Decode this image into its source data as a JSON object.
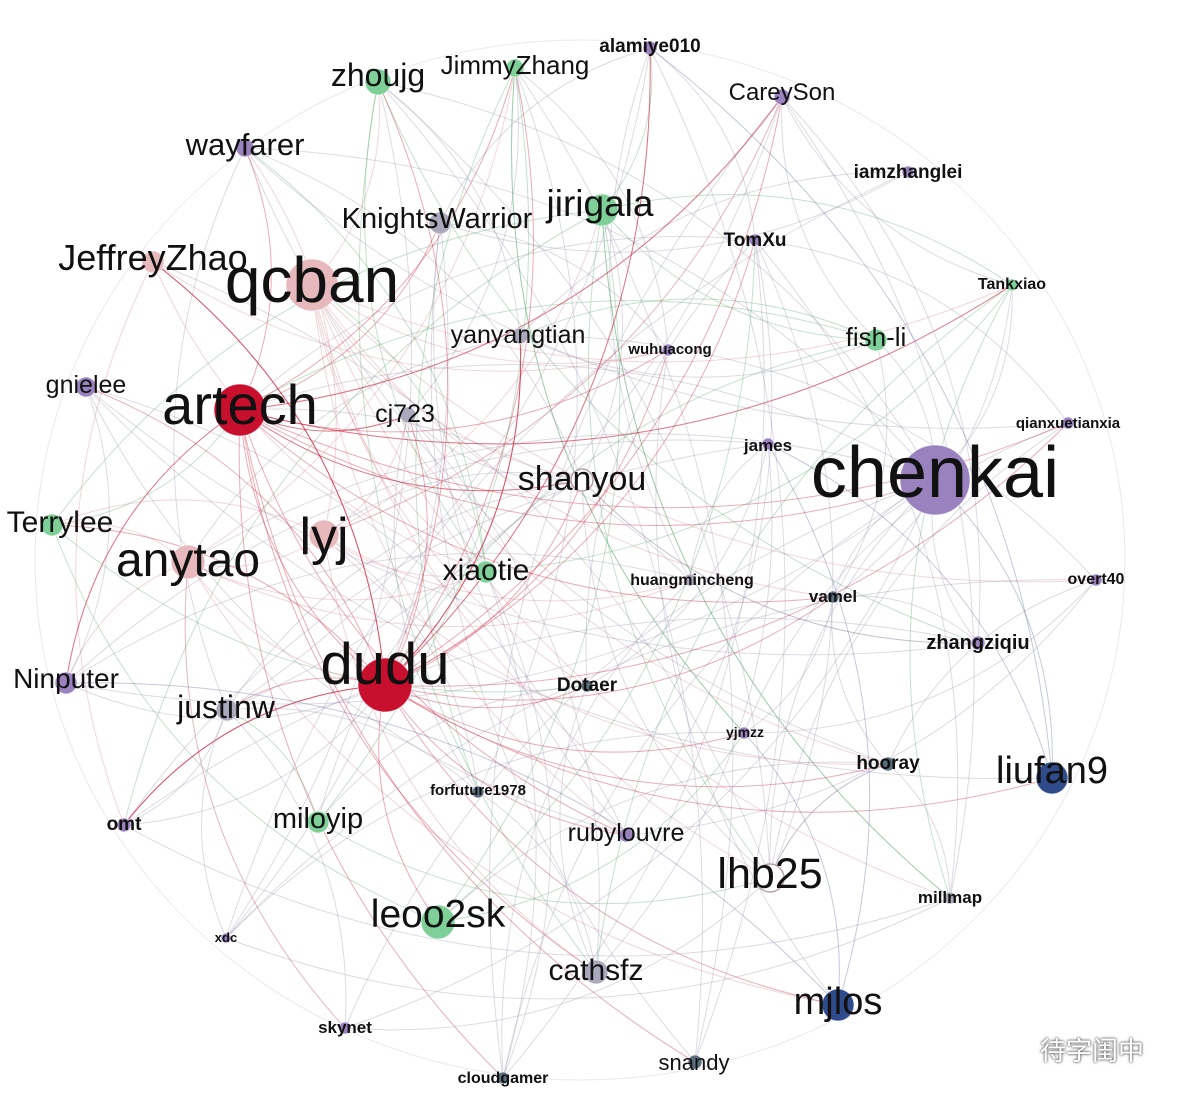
{
  "graph": {
    "colors": {
      "red": "#c8102e",
      "pink": "#e7b9bd",
      "lavender": "#9a82bf",
      "green": "#7fcf98",
      "gray": "#aaa8bb",
      "navy": "#2f4b8c",
      "slate": "#5a6e7e",
      "white": "#ffffff"
    },
    "nodes": [
      {
        "id": "zhoujg",
        "label": "zhoujg",
        "color": "green"
      },
      {
        "id": "JimmyZhang",
        "label": "JimmyZhang",
        "color": "green"
      },
      {
        "id": "alamiye010",
        "label": "alamiye010",
        "color": "lavender"
      },
      {
        "id": "CareySon",
        "label": "CareySon",
        "color": "lavender"
      },
      {
        "id": "wayfarer",
        "label": "wayfarer",
        "color": "lavender"
      },
      {
        "id": "iamzhanglei",
        "label": "iamzhanglei",
        "color": "lavender"
      },
      {
        "id": "jirigala",
        "label": "jirigala",
        "color": "green"
      },
      {
        "id": "KnightsWarrior",
        "label": "KnightsWarrior",
        "color": "gray"
      },
      {
        "id": "TomXu",
        "label": "TomXu",
        "color": "lavender"
      },
      {
        "id": "JeffreyZhao",
        "label": "JeffreyZhao",
        "color": "pink"
      },
      {
        "id": "qcban",
        "label": "qcban",
        "color": "pink"
      },
      {
        "id": "Tankxiao",
        "label": "Tankxiao",
        "color": "green"
      },
      {
        "id": "yanyangtian",
        "label": "yanyangtian",
        "color": "gray"
      },
      {
        "id": "wuhuacong",
        "label": "wuhuacong",
        "color": "lavender"
      },
      {
        "id": "fish-li",
        "label": "fish-li",
        "color": "green"
      },
      {
        "id": "gnielee",
        "label": "gnielee",
        "color": "lavender"
      },
      {
        "id": "artech",
        "label": "artech",
        "color": "red"
      },
      {
        "id": "cj723",
        "label": "cj723",
        "color": "gray"
      },
      {
        "id": "qianxuetianxia",
        "label": "qianxuetianxia",
        "color": "lavender"
      },
      {
        "id": "james",
        "label": "james",
        "color": "lavender"
      },
      {
        "id": "chenkai",
        "label": "chenkai",
        "color": "lavender"
      },
      {
        "id": "shanyou",
        "label": "shanyou",
        "color": "white"
      },
      {
        "id": "Terrylee",
        "label": "Terrylee",
        "color": "green"
      },
      {
        "id": "lyj",
        "label": "lyj",
        "color": "pink"
      },
      {
        "id": "anytao",
        "label": "anytao",
        "color": "pink"
      },
      {
        "id": "xiaotie",
        "label": "xiaotie",
        "color": "green"
      },
      {
        "id": "huangmincheng",
        "label": "huangmincheng",
        "color": "gray"
      },
      {
        "id": "vamel",
        "label": "vamel",
        "color": "slate"
      },
      {
        "id": "overt40",
        "label": "overt40",
        "color": "lavender"
      },
      {
        "id": "zhangziqiu",
        "label": "zhangziqiu",
        "color": "lavender"
      },
      {
        "id": "dudu",
        "label": "dudu",
        "color": "red"
      },
      {
        "id": "Ninputer",
        "label": "Ninputer",
        "color": "lavender"
      },
      {
        "id": "Dotaer",
        "label": "Dotaer",
        "color": "slate"
      },
      {
        "id": "justinw",
        "label": "justinw",
        "color": "gray"
      },
      {
        "id": "yjmzz",
        "label": "yjmzz",
        "color": "lavender"
      },
      {
        "id": "hooray",
        "label": "hooray",
        "color": "slate"
      },
      {
        "id": "liufan9",
        "label": "liufan9",
        "color": "navy"
      },
      {
        "id": "forfuture1978",
        "label": "forfuture1978",
        "color": "slate"
      },
      {
        "id": "omt",
        "label": "omt",
        "color": "lavender"
      },
      {
        "id": "miloyip",
        "label": "miloyip",
        "color": "green"
      },
      {
        "id": "rubylouvre",
        "label": "rubylouvre",
        "color": "lavender"
      },
      {
        "id": "lhb25",
        "label": "lhb25",
        "color": "white"
      },
      {
        "id": "millmap",
        "label": "millmap",
        "color": "gray"
      },
      {
        "id": "leoo2sk",
        "label": "leoo2sk",
        "color": "green"
      },
      {
        "id": "xdc",
        "label": "xdc",
        "color": "lavender"
      },
      {
        "id": "cathsfz",
        "label": "cathsfz",
        "color": "gray"
      },
      {
        "id": "mjlos",
        "label": "mjlos",
        "color": "navy"
      },
      {
        "id": "skynet",
        "label": "skynet",
        "color": "lavender"
      },
      {
        "id": "snandy",
        "label": "snandy",
        "color": "slate"
      },
      {
        "id": "cloudgamer",
        "label": "cloudgamer",
        "color": "slate"
      }
    ]
  },
  "watermark": {
    "text": "待字闺中",
    "icon": "wechat-icon"
  }
}
